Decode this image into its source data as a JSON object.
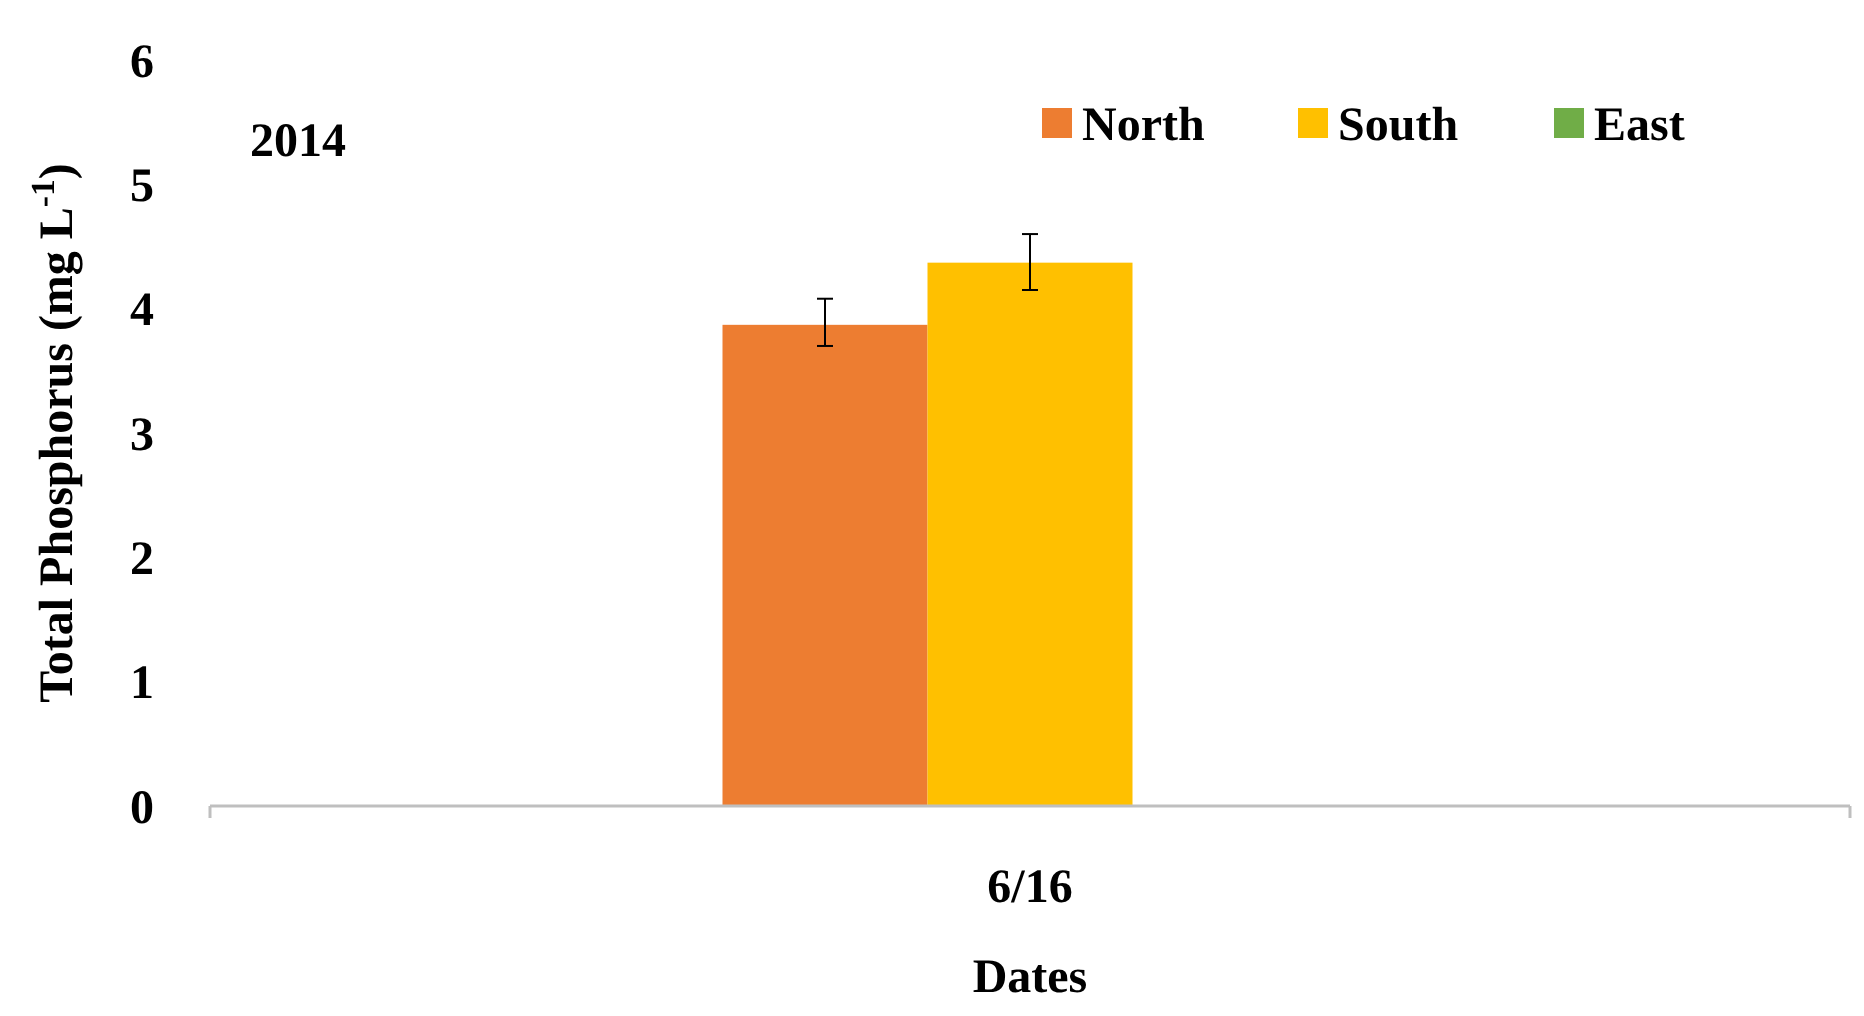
{
  "chart_data": {
    "type": "bar",
    "xlabel": "Dates",
    "ylabel": "Total Phosphorus (mg L$^{-1}$)",
    "categories": [
      "6/16"
    ],
    "series": [
      {
        "name": "North",
        "color": "#ed7d31",
        "values": [
          3.87
        ],
        "errors": [
          [
            3.7,
            4.08
          ]
        ]
      },
      {
        "name": "South",
        "color": "#ffc000",
        "values": [
          4.37
        ],
        "errors": [
          [
            4.15,
            4.6
          ]
        ]
      },
      {
        "name": "East",
        "color": "#70ad47",
        "values": [
          0
        ]
      }
    ],
    "ylim": [
      0,
      6
    ],
    "yticks": [
      0,
      1,
      2,
      3,
      4,
      5,
      6
    ],
    "grid": false,
    "legend": "top right",
    "annotations": [
      "2014"
    ]
  }
}
